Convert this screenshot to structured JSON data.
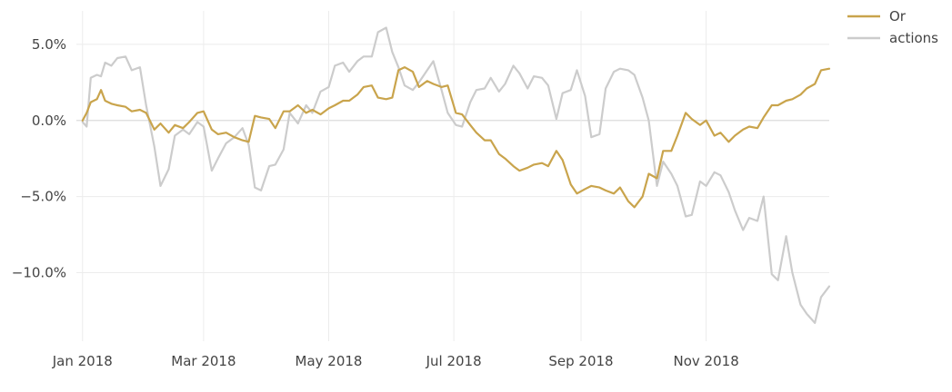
{
  "chart_data": {
    "type": "line",
    "title": "",
    "xlabel": "",
    "ylabel": "",
    "x_ticks": [
      {
        "label": "Jan 2018",
        "date": "2018-01-01"
      },
      {
        "label": "Mar 2018",
        "date": "2018-03-01"
      },
      {
        "label": "May 2018",
        "date": "2018-05-01"
      },
      {
        "label": "Jul 2018",
        "date": "2018-07-01"
      },
      {
        "label": "Sep 2018",
        "date": "2018-09-01"
      },
      {
        "label": "Nov 2018",
        "date": "2018-11-01"
      }
    ],
    "y_ticks": [
      {
        "label": "5.0%",
        "value": 5
      },
      {
        "label": "0.0%",
        "value": 0
      },
      {
        "label": "−5.0%",
        "value": -5
      },
      {
        "label": "−10.0%",
        "value": -10
      }
    ],
    "xlim": [
      "2017-12-29",
      "2018-12-31"
    ],
    "ylim": [
      -14.5,
      7.2
    ],
    "grid": true,
    "legend_position": "top-right",
    "series": [
      {
        "name": "Or",
        "color": "#c9a44c",
        "points": [
          [
            "2018-01-01",
            0.0
          ],
          [
            "2018-01-03",
            0.5
          ],
          [
            "2018-01-05",
            1.2
          ],
          [
            "2018-01-08",
            1.4
          ],
          [
            "2018-01-10",
            2.0
          ],
          [
            "2018-01-12",
            1.3
          ],
          [
            "2018-01-15",
            1.1
          ],
          [
            "2018-01-18",
            1.0
          ],
          [
            "2018-01-22",
            0.9
          ],
          [
            "2018-01-25",
            0.6
          ],
          [
            "2018-01-29",
            0.7
          ],
          [
            "2018-02-01",
            0.5
          ],
          [
            "2018-02-05",
            -0.6
          ],
          [
            "2018-02-08",
            -0.2
          ],
          [
            "2018-02-12",
            -0.8
          ],
          [
            "2018-02-15",
            -0.3
          ],
          [
            "2018-02-19",
            -0.5
          ],
          [
            "2018-02-22",
            -0.1
          ],
          [
            "2018-02-26",
            0.5
          ],
          [
            "2018-03-01",
            0.6
          ],
          [
            "2018-03-05",
            -0.6
          ],
          [
            "2018-03-08",
            -0.9
          ],
          [
            "2018-03-12",
            -0.8
          ],
          [
            "2018-03-16",
            -1.1
          ],
          [
            "2018-03-20",
            -1.3
          ],
          [
            "2018-03-23",
            -1.4
          ],
          [
            "2018-03-26",
            0.3
          ],
          [
            "2018-03-29",
            0.2
          ],
          [
            "2018-04-02",
            0.1
          ],
          [
            "2018-04-05",
            -0.5
          ],
          [
            "2018-04-09",
            0.6
          ],
          [
            "2018-04-12",
            0.6
          ],
          [
            "2018-04-16",
            1.0
          ],
          [
            "2018-04-20",
            0.5
          ],
          [
            "2018-04-23",
            0.7
          ],
          [
            "2018-04-27",
            0.4
          ],
          [
            "2018-05-01",
            0.8
          ],
          [
            "2018-05-04",
            1.0
          ],
          [
            "2018-05-08",
            1.3
          ],
          [
            "2018-05-11",
            1.3
          ],
          [
            "2018-05-15",
            1.7
          ],
          [
            "2018-05-18",
            2.2
          ],
          [
            "2018-05-22",
            2.3
          ],
          [
            "2018-05-25",
            1.5
          ],
          [
            "2018-05-29",
            1.4
          ],
          [
            "2018-06-01",
            1.5
          ],
          [
            "2018-06-04",
            3.3
          ],
          [
            "2018-06-07",
            3.5
          ],
          [
            "2018-06-11",
            3.2
          ],
          [
            "2018-06-14",
            2.2
          ],
          [
            "2018-06-18",
            2.6
          ],
          [
            "2018-06-21",
            2.4
          ],
          [
            "2018-06-25",
            2.2
          ],
          [
            "2018-06-28",
            2.3
          ],
          [
            "2018-07-02",
            0.5
          ],
          [
            "2018-07-05",
            0.4
          ],
          [
            "2018-07-09",
            -0.3
          ],
          [
            "2018-07-12",
            -0.8
          ],
          [
            "2018-07-16",
            -1.3
          ],
          [
            "2018-07-19",
            -1.3
          ],
          [
            "2018-07-23",
            -2.2
          ],
          [
            "2018-07-26",
            -2.5
          ],
          [
            "2018-07-30",
            -3.0
          ],
          [
            "2018-08-02",
            -3.3
          ],
          [
            "2018-08-06",
            -3.1
          ],
          [
            "2018-08-09",
            -2.9
          ],
          [
            "2018-08-13",
            -2.8
          ],
          [
            "2018-08-16",
            -3.0
          ],
          [
            "2018-08-20",
            -2.0
          ],
          [
            "2018-08-23",
            -2.6
          ],
          [
            "2018-08-27",
            -4.2
          ],
          [
            "2018-08-30",
            -4.8
          ],
          [
            "2018-09-03",
            -4.5
          ],
          [
            "2018-09-06",
            -4.3
          ],
          [
            "2018-09-10",
            -4.4
          ],
          [
            "2018-09-13",
            -4.6
          ],
          [
            "2018-09-17",
            -4.8
          ],
          [
            "2018-09-20",
            -4.4
          ],
          [
            "2018-09-24",
            -5.3
          ],
          [
            "2018-09-27",
            -5.7
          ],
          [
            "2018-10-01",
            -5.0
          ],
          [
            "2018-10-04",
            -3.5
          ],
          [
            "2018-10-08",
            -3.8
          ],
          [
            "2018-10-11",
            -2.0
          ],
          [
            "2018-10-15",
            -2.0
          ],
          [
            "2018-10-18",
            -1.0
          ],
          [
            "2018-10-22",
            0.5
          ],
          [
            "2018-10-25",
            0.1
          ],
          [
            "2018-10-29",
            -0.3
          ],
          [
            "2018-11-01",
            0.0
          ],
          [
            "2018-11-05",
            -1.0
          ],
          [
            "2018-11-08",
            -0.8
          ],
          [
            "2018-11-12",
            -1.4
          ],
          [
            "2018-11-15",
            -1.0
          ],
          [
            "2018-11-19",
            -0.6
          ],
          [
            "2018-11-22",
            -0.4
          ],
          [
            "2018-11-26",
            -0.5
          ],
          [
            "2018-11-29",
            0.2
          ],
          [
            "2018-12-03",
            1.0
          ],
          [
            "2018-12-06",
            1.0
          ],
          [
            "2018-12-10",
            1.3
          ],
          [
            "2018-12-13",
            1.4
          ],
          [
            "2018-12-17",
            1.7
          ],
          [
            "2018-12-20",
            2.1
          ],
          [
            "2018-12-24",
            2.4
          ],
          [
            "2018-12-27",
            3.3
          ],
          [
            "2018-12-31",
            3.4
          ]
        ]
      },
      {
        "name": "actions",
        "color": "#cccccc",
        "points": [
          [
            "2018-01-01",
            -0.1
          ],
          [
            "2018-01-03",
            -0.4
          ],
          [
            "2018-01-05",
            2.8
          ],
          [
            "2018-01-08",
            3.0
          ],
          [
            "2018-01-10",
            2.9
          ],
          [
            "2018-01-12",
            3.8
          ],
          [
            "2018-01-15",
            3.6
          ],
          [
            "2018-01-18",
            4.1
          ],
          [
            "2018-01-22",
            4.2
          ],
          [
            "2018-01-25",
            3.3
          ],
          [
            "2018-01-29",
            3.5
          ],
          [
            "2018-02-01",
            1.0
          ],
          [
            "2018-02-05",
            -1.7
          ],
          [
            "2018-02-08",
            -4.3
          ],
          [
            "2018-02-12",
            -3.2
          ],
          [
            "2018-02-15",
            -1.0
          ],
          [
            "2018-02-19",
            -0.6
          ],
          [
            "2018-02-22",
            -0.9
          ],
          [
            "2018-02-26",
            -0.1
          ],
          [
            "2018-03-01",
            -0.4
          ],
          [
            "2018-03-05",
            -3.3
          ],
          [
            "2018-03-08",
            -2.5
          ],
          [
            "2018-03-12",
            -1.5
          ],
          [
            "2018-03-16",
            -1.1
          ],
          [
            "2018-03-20",
            -0.5
          ],
          [
            "2018-03-23",
            -1.6
          ],
          [
            "2018-03-26",
            -4.4
          ],
          [
            "2018-03-29",
            -4.6
          ],
          [
            "2018-04-02",
            -3.0
          ],
          [
            "2018-04-05",
            -2.9
          ],
          [
            "2018-04-09",
            -1.9
          ],
          [
            "2018-04-12",
            0.5
          ],
          [
            "2018-04-16",
            -0.2
          ],
          [
            "2018-04-20",
            1.0
          ],
          [
            "2018-04-23",
            0.5
          ],
          [
            "2018-04-27",
            1.9
          ],
          [
            "2018-05-01",
            2.2
          ],
          [
            "2018-05-04",
            3.6
          ],
          [
            "2018-05-08",
            3.8
          ],
          [
            "2018-05-11",
            3.2
          ],
          [
            "2018-05-15",
            3.9
          ],
          [
            "2018-05-18",
            4.2
          ],
          [
            "2018-05-22",
            4.2
          ],
          [
            "2018-05-25",
            5.8
          ],
          [
            "2018-05-29",
            6.1
          ],
          [
            "2018-06-01",
            4.5
          ],
          [
            "2018-06-04",
            3.5
          ],
          [
            "2018-06-07",
            2.3
          ],
          [
            "2018-06-11",
            2.0
          ],
          [
            "2018-06-14",
            2.5
          ],
          [
            "2018-06-18",
            3.3
          ],
          [
            "2018-06-21",
            3.9
          ],
          [
            "2018-06-25",
            2.0
          ],
          [
            "2018-06-28",
            0.5
          ],
          [
            "2018-07-02",
            -0.3
          ],
          [
            "2018-07-05",
            -0.4
          ],
          [
            "2018-07-09",
            1.2
          ],
          [
            "2018-07-12",
            2.0
          ],
          [
            "2018-07-16",
            2.1
          ],
          [
            "2018-07-19",
            2.8
          ],
          [
            "2018-07-23",
            1.9
          ],
          [
            "2018-07-26",
            2.4
          ],
          [
            "2018-07-30",
            3.6
          ],
          [
            "2018-08-02",
            3.1
          ],
          [
            "2018-08-06",
            2.1
          ],
          [
            "2018-08-09",
            2.9
          ],
          [
            "2018-08-13",
            2.8
          ],
          [
            "2018-08-16",
            2.3
          ],
          [
            "2018-08-20",
            0.1
          ],
          [
            "2018-08-23",
            1.8
          ],
          [
            "2018-08-27",
            2.0
          ],
          [
            "2018-08-30",
            3.3
          ],
          [
            "2018-09-03",
            1.6
          ],
          [
            "2018-09-06",
            -1.1
          ],
          [
            "2018-09-10",
            -0.9
          ],
          [
            "2018-09-13",
            2.1
          ],
          [
            "2018-09-17",
            3.2
          ],
          [
            "2018-09-20",
            3.4
          ],
          [
            "2018-09-24",
            3.3
          ],
          [
            "2018-09-27",
            3.0
          ],
          [
            "2018-10-01",
            1.5
          ],
          [
            "2018-10-04",
            0.0
          ],
          [
            "2018-10-08",
            -4.3
          ],
          [
            "2018-10-11",
            -2.7
          ],
          [
            "2018-10-15",
            -3.5
          ],
          [
            "2018-10-18",
            -4.3
          ],
          [
            "2018-10-22",
            -6.3
          ],
          [
            "2018-10-25",
            -6.2
          ],
          [
            "2018-10-29",
            -4.0
          ],
          [
            "2018-11-01",
            -4.3
          ],
          [
            "2018-11-05",
            -3.4
          ],
          [
            "2018-11-08",
            -3.6
          ],
          [
            "2018-11-12",
            -4.7
          ],
          [
            "2018-11-15",
            -5.9
          ],
          [
            "2018-11-19",
            -7.2
          ],
          [
            "2018-11-22",
            -6.4
          ],
          [
            "2018-11-26",
            -6.6
          ],
          [
            "2018-11-29",
            -5.0
          ],
          [
            "2018-12-03",
            -10.1
          ],
          [
            "2018-12-06",
            -10.5
          ],
          [
            "2018-12-10",
            -7.6
          ],
          [
            "2018-12-13",
            -10.0
          ],
          [
            "2018-12-17",
            -12.1
          ],
          [
            "2018-12-20",
            -12.7
          ],
          [
            "2018-12-24",
            -13.3
          ],
          [
            "2018-12-27",
            -11.6
          ],
          [
            "2018-12-31",
            -10.9
          ]
        ]
      }
    ]
  }
}
